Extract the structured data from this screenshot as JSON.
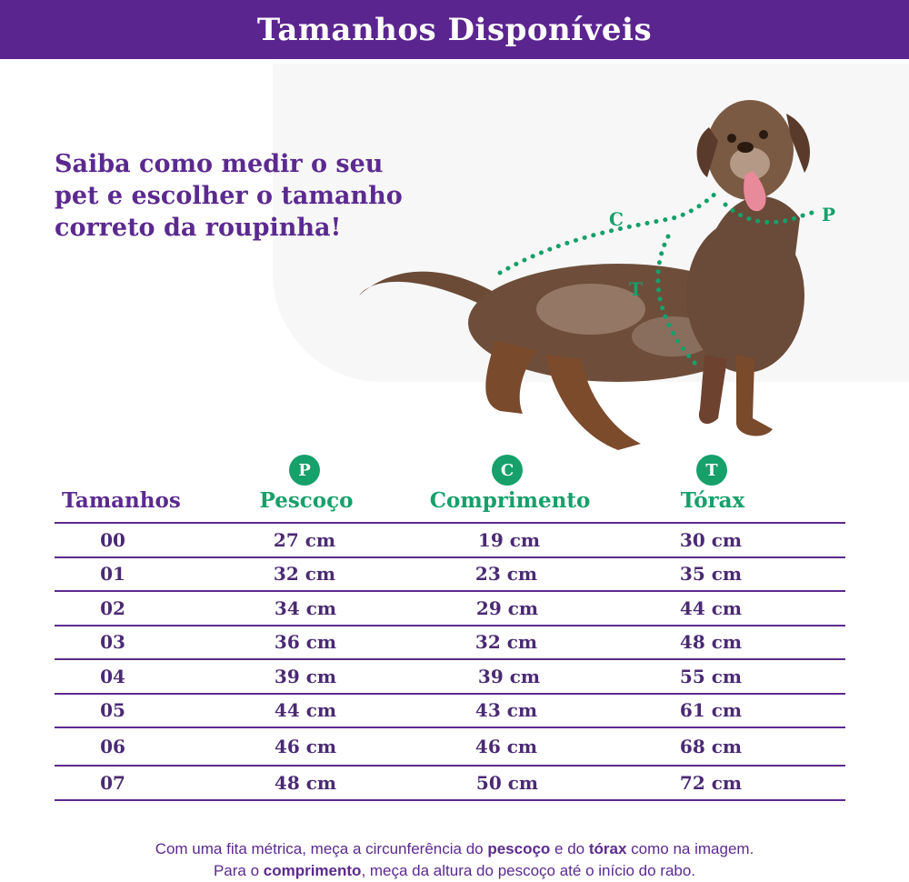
{
  "banner": {
    "title": "Tamanhos Disponíveis"
  },
  "intro": {
    "text": "Saiba como medir o seu pet e escolher o tamanho correto da roupinha!"
  },
  "measure_labels": {
    "neck": "P",
    "length": "C",
    "chest": "T"
  },
  "colors": {
    "purple": "#5b2590",
    "green": "#16a06a",
    "row_line": "#5b2a8f"
  },
  "table": {
    "headers": {
      "sizes": "Tamanhos",
      "neck": {
        "badge": "P",
        "label": "Pescoço"
      },
      "length": {
        "badge": "C",
        "label": "Comprimento"
      },
      "chest": {
        "badge": "T",
        "label": "Tórax"
      }
    },
    "rows": [
      {
        "size": "00",
        "neck": "27 cm",
        "length": "19 cm",
        "chest": "30 cm"
      },
      {
        "size": "01",
        "neck": "32 cm",
        "length": "23 cm",
        "chest": "35 cm"
      },
      {
        "size": "02",
        "neck": "34 cm",
        "length": "29 cm",
        "chest": "44 cm"
      },
      {
        "size": "03",
        "neck": "36 cm",
        "length": "32 cm",
        "chest": "48 cm"
      },
      {
        "size": "04",
        "neck": "39 cm",
        "length": "39 cm",
        "chest": "55 cm"
      },
      {
        "size": "05",
        "neck": "44 cm",
        "length": "43 cm",
        "chest": "61 cm"
      },
      {
        "size": "06",
        "neck": "46 cm",
        "length": "46 cm",
        "chest": "68 cm"
      },
      {
        "size": "07",
        "neck": "48 cm",
        "length": "50 cm",
        "chest": "72 cm"
      }
    ]
  },
  "footer": {
    "line1": {
      "a": "Com uma fita métrica, meça a circunferência do ",
      "b": "pescoço",
      "c": " e do ",
      "d": "tórax",
      "e": " como na imagem."
    },
    "line2": {
      "a": "Para o ",
      "b": "comprimento",
      "c": ", meça da altura do pescoço até o início do rabo."
    }
  }
}
